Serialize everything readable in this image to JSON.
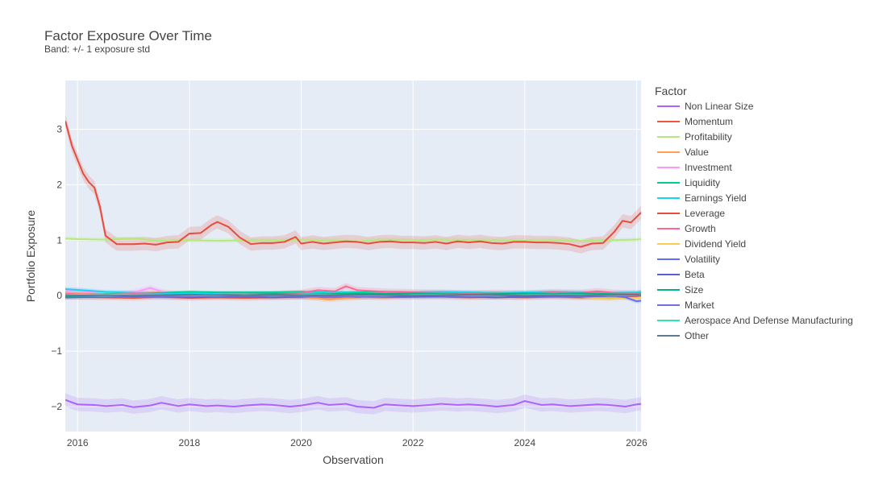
{
  "chart_data": {
    "type": "line",
    "title": "Factor Exposure Over Time",
    "subtitle": "Band: +/- 1 exposure std",
    "xlabel": "Observation",
    "ylabel": "Portfolio Exposure",
    "xlim": [
      2015.78,
      2026.08
    ],
    "ylim": [
      -2.45,
      3.88
    ],
    "x_ticks": [
      2016,
      2018,
      2020,
      2022,
      2024,
      2026
    ],
    "y_ticks": [
      -2,
      -1,
      0,
      1,
      2,
      3
    ],
    "y_tick_labels": [
      "−2",
      "−1",
      "0",
      "1",
      "2",
      "3"
    ],
    "grid": true,
    "legend_title": "Factor",
    "legend_placement": "right",
    "series": [
      {
        "name": "Non Linear Size",
        "color": "#ab63fa",
        "band": 0.12,
        "x": [
          2015.78,
          2016.0,
          2016.3,
          2016.5,
          2016.8,
          2017.0,
          2017.3,
          2017.5,
          2017.8,
          2018.0,
          2018.3,
          2018.5,
          2018.8,
          2019.0,
          2019.3,
          2019.5,
          2019.8,
          2020.0,
          2020.3,
          2020.5,
          2020.8,
          2021.0,
          2021.3,
          2021.5,
          2021.8,
          2022.0,
          2022.3,
          2022.5,
          2022.8,
          2023.0,
          2023.3,
          2023.5,
          2023.8,
          2024.0,
          2024.3,
          2024.5,
          2024.8,
          2025.0,
          2025.3,
          2025.5,
          2025.8,
          2026.0,
          2026.08
        ],
        "y": [
          -1.88,
          -1.96,
          -1.97,
          -1.99,
          -1.97,
          -2.01,
          -1.98,
          -1.93,
          -1.99,
          -1.96,
          -1.99,
          -1.98,
          -2.0,
          -1.98,
          -1.96,
          -1.97,
          -2.0,
          -1.98,
          -1.93,
          -1.97,
          -1.95,
          -2.0,
          -2.02,
          -1.96,
          -1.98,
          -1.99,
          -1.97,
          -1.95,
          -1.97,
          -1.96,
          -1.98,
          -2.0,
          -1.97,
          -1.9,
          -1.97,
          -1.96,
          -1.99,
          -1.98,
          -1.96,
          -1.97,
          -2.0,
          -1.96,
          -1.95
        ]
      },
      {
        "name": "Momentum",
        "color": "#ef553b",
        "band": 0.05,
        "x": [
          2015.78,
          2016.5,
          2017.0,
          2017.5,
          2018.0,
          2018.5,
          2019.0,
          2019.5,
          2020.0,
          2020.5,
          2021.0,
          2021.5,
          2022.0,
          2022.5,
          2023.0,
          2023.5,
          2024.0,
          2024.5,
          2025.0,
          2025.5,
          2026.0,
          2026.08
        ],
        "y": [
          -0.02,
          -0.03,
          -0.04,
          -0.02,
          -0.04,
          -0.03,
          -0.04,
          -0.03,
          -0.02,
          -0.03,
          -0.02,
          -0.03,
          -0.02,
          -0.02,
          -0.03,
          -0.02,
          -0.03,
          -0.02,
          -0.03,
          -0.02,
          -0.01,
          0.0
        ]
      },
      {
        "name": "Profitability",
        "color": "#b6e880",
        "band": 0.04,
        "x": [
          2015.78,
          2016.0,
          2016.5,
          2017.0,
          2017.5,
          2018.0,
          2018.5,
          2019.0,
          2019.5,
          2020.0,
          2020.5,
          2021.0,
          2021.5,
          2022.0,
          2022.5,
          2023.0,
          2023.5,
          2024.0,
          2024.5,
          2025.0,
          2025.5,
          2026.0,
          2026.08
        ],
        "y": [
          1.03,
          1.02,
          1.01,
          1.03,
          0.99,
          1.0,
          0.99,
          1.0,
          1.0,
          1.01,
          1.0,
          0.98,
          1.01,
          1.0,
          1.01,
          1.0,
          1.0,
          0.99,
          1.0,
          0.99,
          1.0,
          1.01,
          1.02
        ]
      },
      {
        "name": "Value",
        "color": "#ffa15a",
        "band": 0.05,
        "x": [
          2015.78,
          2016.5,
          2017.0,
          2017.5,
          2018.0,
          2018.5,
          2019.0,
          2019.5,
          2020.0,
          2020.5,
          2021.0,
          2021.5,
          2022.0,
          2022.5,
          2023.0,
          2023.5,
          2024.0,
          2024.5,
          2025.0,
          2025.5,
          2026.0,
          2026.08
        ],
        "y": [
          0.05,
          0.03,
          0.04,
          0.06,
          0.03,
          0.02,
          0.01,
          0.0,
          -0.02,
          -0.07,
          -0.03,
          -0.01,
          0.02,
          0.03,
          0.02,
          0.01,
          0.0,
          0.02,
          -0.01,
          -0.03,
          0.01,
          0.02
        ]
      },
      {
        "name": "Investment",
        "color": "#ff97ff",
        "band": 0.05,
        "x": [
          2015.78,
          2016.0,
          2016.5,
          2017.0,
          2017.3,
          2017.6,
          2018.0,
          2018.5,
          2019.0,
          2019.5,
          2020.0,
          2020.5,
          2021.0,
          2021.5,
          2022.0,
          2022.5,
          2023.0,
          2023.5,
          2024.0,
          2024.5,
          2025.0,
          2025.5,
          2026.0,
          2026.08
        ],
        "y": [
          0.08,
          0.1,
          0.03,
          0.06,
          0.14,
          0.05,
          0.02,
          0.03,
          0.01,
          0.02,
          0.0,
          0.03,
          0.02,
          0.04,
          0.02,
          0.03,
          0.01,
          0.02,
          0.03,
          0.02,
          0.04,
          0.03,
          0.02,
          0.03
        ]
      },
      {
        "name": "Liquidity",
        "color": "#00cc96",
        "band": 0.03,
        "x": [
          2015.78,
          2016.5,
          2017.0,
          2017.5,
          2018.0,
          2018.5,
          2019.0,
          2019.5,
          2020.0,
          2020.5,
          2021.0,
          2021.5,
          2022.0,
          2022.5,
          2023.0,
          2023.5,
          2024.0,
          2024.5,
          2025.0,
          2025.5,
          2026.0,
          2026.08
        ],
        "y": [
          0.02,
          0.03,
          0.04,
          0.05,
          0.07,
          0.06,
          0.06,
          0.06,
          0.07,
          0.06,
          0.06,
          0.07,
          0.06,
          0.05,
          0.06,
          0.05,
          0.05,
          0.06,
          0.05,
          0.04,
          0.05,
          0.05
        ]
      },
      {
        "name": "Earnings Yield",
        "color": "#19d3f3",
        "band": 0.04,
        "x": [
          2015.78,
          2016.5,
          2017.0,
          2017.5,
          2018.0,
          2018.5,
          2019.0,
          2019.5,
          2020.0,
          2020.5,
          2021.0,
          2021.5,
          2022.0,
          2022.5,
          2023.0,
          2023.5,
          2024.0,
          2024.5,
          2025.0,
          2025.5,
          2026.0,
          2026.08
        ],
        "y": [
          0.12,
          0.07,
          0.05,
          0.03,
          0.04,
          0.03,
          0.02,
          0.03,
          0.05,
          0.06,
          0.05,
          0.04,
          0.06,
          0.07,
          0.06,
          0.05,
          0.06,
          0.07,
          0.06,
          0.05,
          0.06,
          0.07
        ]
      },
      {
        "name": "Leverage",
        "color": "#e74c3c",
        "band": 0.12,
        "x": [
          2015.78,
          2015.9,
          2016.0,
          2016.1,
          2016.2,
          2016.3,
          2016.4,
          2016.5,
          2016.7,
          2017.0,
          2017.2,
          2017.4,
          2017.6,
          2017.8,
          2018.0,
          2018.2,
          2018.4,
          2018.5,
          2018.7,
          2018.9,
          2019.1,
          2019.3,
          2019.5,
          2019.7,
          2019.9,
          2020.0,
          2020.2,
          2020.4,
          2020.6,
          2020.8,
          2021.0,
          2021.2,
          2021.4,
          2021.6,
          2021.8,
          2022.0,
          2022.2,
          2022.4,
          2022.6,
          2022.8,
          2023.0,
          2023.2,
          2023.4,
          2023.6,
          2023.8,
          2024.0,
          2024.2,
          2024.4,
          2024.6,
          2024.8,
          2025.0,
          2025.2,
          2025.4,
          2025.6,
          2025.75,
          2025.9,
          2026.0,
          2026.08
        ],
        "y": [
          3.15,
          2.7,
          2.45,
          2.2,
          2.05,
          1.95,
          1.6,
          1.08,
          0.93,
          0.93,
          0.94,
          0.92,
          0.96,
          0.97,
          1.12,
          1.13,
          1.28,
          1.33,
          1.24,
          1.05,
          0.93,
          0.95,
          0.95,
          0.97,
          1.06,
          0.94,
          0.97,
          0.94,
          0.96,
          0.98,
          0.97,
          0.94,
          0.97,
          0.98,
          0.96,
          0.96,
          0.95,
          0.97,
          0.94,
          0.98,
          0.96,
          0.98,
          0.95,
          0.94,
          0.97,
          0.97,
          0.96,
          0.96,
          0.95,
          0.93,
          0.88,
          0.94,
          0.95,
          1.15,
          1.35,
          1.32,
          1.42,
          1.5
        ]
      },
      {
        "name": "Growth",
        "color": "#ff6692",
        "band": 0.06,
        "x": [
          2015.78,
          2016.5,
          2017.0,
          2017.5,
          2018.0,
          2018.5,
          2019.0,
          2019.5,
          2020.0,
          2020.3,
          2020.6,
          2020.8,
          2021.0,
          2021.5,
          2022.0,
          2022.5,
          2023.0,
          2023.5,
          2024.0,
          2024.5,
          2025.0,
          2025.3,
          2025.6,
          2026.0,
          2026.08
        ],
        "y": [
          0.03,
          0.02,
          0.03,
          0.02,
          0.01,
          0.02,
          0.02,
          0.03,
          0.05,
          0.1,
          0.08,
          0.17,
          0.1,
          0.07,
          0.06,
          0.05,
          0.04,
          0.05,
          0.04,
          0.06,
          0.05,
          0.08,
          0.05,
          0.04,
          0.05
        ]
      },
      {
        "name": "Dividend Yield",
        "color": "#fecb52",
        "band": 0.04,
        "x": [
          2015.78,
          2016.5,
          2017.0,
          2017.5,
          2018.0,
          2018.5,
          2019.0,
          2019.5,
          2020.0,
          2020.5,
          2021.0,
          2021.5,
          2022.0,
          2022.5,
          2023.0,
          2023.5,
          2024.0,
          2024.5,
          2025.0,
          2025.5,
          2026.0,
          2026.08
        ],
        "y": [
          0.01,
          0.02,
          0.01,
          0.0,
          0.02,
          0.01,
          0.0,
          -0.01,
          0.0,
          -0.02,
          -0.01,
          0.0,
          0.01,
          0.0,
          -0.01,
          -0.02,
          0.0,
          -0.01,
          -0.02,
          -0.06,
          -0.04,
          -0.03
        ]
      },
      {
        "name": "Volatility",
        "color": "#636efa",
        "band": 0.04,
        "x": [
          2015.78,
          2016.5,
          2017.0,
          2017.5,
          2018.0,
          2018.5,
          2019.0,
          2019.5,
          2020.0,
          2020.5,
          2021.0,
          2021.5,
          2022.0,
          2022.5,
          2023.0,
          2023.5,
          2024.0,
          2024.5,
          2025.0,
          2025.5,
          2025.8,
          2026.0,
          2026.08
        ],
        "y": [
          0.0,
          0.01,
          -0.02,
          0.01,
          0.0,
          -0.01,
          0.0,
          0.01,
          -0.01,
          0.0,
          0.01,
          0.0,
          0.02,
          0.01,
          0.0,
          0.01,
          0.0,
          0.01,
          0.02,
          0.01,
          -0.03,
          -0.1,
          -0.09
        ]
      },
      {
        "name": "Beta",
        "color": "#5a5fd6",
        "band": 0.04,
        "x": [
          2015.78,
          2016.5,
          2017.0,
          2017.5,
          2018.0,
          2018.5,
          2019.0,
          2019.5,
          2020.0,
          2020.5,
          2021.0,
          2021.5,
          2022.0,
          2022.5,
          2023.0,
          2023.5,
          2024.0,
          2024.5,
          2025.0,
          2025.5,
          2026.0,
          2026.08
        ],
        "y": [
          -0.03,
          -0.02,
          -0.01,
          -0.02,
          -0.03,
          -0.02,
          -0.02,
          -0.03,
          -0.02,
          -0.01,
          -0.02,
          -0.01,
          -0.02,
          -0.01,
          -0.02,
          -0.03,
          -0.02,
          -0.01,
          -0.02,
          -0.01,
          0.0,
          0.01
        ]
      },
      {
        "name": "Size",
        "color": "#00b386",
        "band": 0.03,
        "x": [
          2015.78,
          2016.5,
          2017.0,
          2017.5,
          2018.0,
          2018.5,
          2019.0,
          2019.5,
          2020.0,
          2020.5,
          2021.0,
          2021.5,
          2022.0,
          2022.5,
          2023.0,
          2023.5,
          2024.0,
          2024.5,
          2025.0,
          2025.5,
          2026.0,
          2026.08
        ],
        "y": [
          -0.02,
          -0.01,
          0.0,
          0.01,
          0.0,
          0.01,
          0.02,
          0.03,
          0.02,
          0.03,
          0.04,
          0.03,
          0.04,
          0.03,
          0.02,
          0.03,
          0.04,
          0.03,
          0.04,
          0.03,
          0.02,
          0.03
        ]
      },
      {
        "name": "Market",
        "color": "#7070e0",
        "band": 0.03,
        "x": [
          2015.78,
          2016.5,
          2017.0,
          2017.5,
          2018.0,
          2018.5,
          2019.0,
          2019.5,
          2020.0,
          2020.5,
          2021.0,
          2021.5,
          2022.0,
          2022.5,
          2023.0,
          2023.5,
          2024.0,
          2024.5,
          2025.0,
          2025.5,
          2026.0,
          2026.08
        ],
        "y": [
          0.0,
          -0.01,
          0.0,
          -0.02,
          -0.01,
          0.0,
          -0.01,
          0.0,
          -0.01,
          -0.02,
          -0.01,
          0.0,
          0.01,
          0.0,
          -0.01,
          0.0,
          0.01,
          0.0,
          -0.01,
          0.0,
          0.01,
          0.0
        ]
      },
      {
        "name": "Aerospace And Defense Manufacturing",
        "color": "#2ee8a8",
        "band": 0.02,
        "x": [
          2015.78,
          2016.5,
          2017.0,
          2017.5,
          2018.0,
          2018.5,
          2019.0,
          2019.5,
          2020.0,
          2020.5,
          2021.0,
          2021.5,
          2022.0,
          2022.5,
          2023.0,
          2023.5,
          2024.0,
          2024.5,
          2025.0,
          2025.5,
          2026.0,
          2026.08
        ],
        "y": [
          0.01,
          0.0,
          0.01,
          0.02,
          0.01,
          0.0,
          0.01,
          0.0,
          0.01,
          0.02,
          0.01,
          0.0,
          0.01,
          0.02,
          0.01,
          0.0,
          0.01,
          0.02,
          0.01,
          0.0,
          0.01,
          0.02
        ]
      },
      {
        "name": "Other",
        "color": "#5f7b8f",
        "band": 0.03,
        "x": [
          2015.78,
          2016.5,
          2017.0,
          2017.5,
          2018.0,
          2018.5,
          2019.0,
          2019.5,
          2020.0,
          2020.5,
          2021.0,
          2021.5,
          2022.0,
          2022.5,
          2023.0,
          2023.5,
          2024.0,
          2024.5,
          2025.0,
          2025.5,
          2026.0,
          2026.08
        ],
        "y": [
          0.0,
          0.01,
          0.0,
          0.01,
          0.02,
          0.01,
          0.0,
          0.01,
          0.0,
          0.01,
          0.02,
          0.01,
          0.0,
          0.01,
          0.02,
          0.01,
          0.0,
          0.01,
          0.0,
          0.01,
          0.02,
          0.01
        ]
      }
    ]
  }
}
